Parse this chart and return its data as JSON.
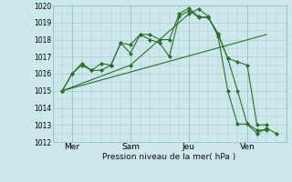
{
  "background_color": "#cce8ea",
  "grid_color": "#aacccc",
  "line_color": "#2d6e2d",
  "xlabel": "Pression niveau de la mer( hPa )",
  "ylim": [
    1012,
    1020
  ],
  "yticks": [
    1012,
    1013,
    1014,
    1015,
    1016,
    1017,
    1018,
    1019,
    1020
  ],
  "xlim": [
    0,
    12
  ],
  "xtick_positions": [
    1,
    4,
    7,
    10
  ],
  "xtick_labels": [
    "Mer",
    "Sam",
    "Jeu",
    "Ven"
  ],
  "vline_positions": [
    1,
    4,
    7,
    10
  ],
  "series": [
    {
      "x": [
        0.5,
        1.0,
        1.5,
        2.0,
        2.5,
        3.0,
        3.5,
        4.0,
        4.5,
        5.0,
        5.5,
        6.0,
        6.5,
        7.0,
        7.5,
        8.0,
        8.5,
        9.0,
        9.5,
        10.0,
        10.5,
        11.0
      ],
      "y": [
        1015.0,
        1016.0,
        1016.6,
        1016.2,
        1016.6,
        1016.5,
        1017.8,
        1017.7,
        1018.3,
        1018.3,
        1018.0,
        1018.0,
        1019.5,
        1019.85,
        1019.35,
        1019.3,
        1018.35,
        1016.9,
        1016.7,
        1016.5,
        1013.0,
        1013.0
      ],
      "marker": true
    },
    {
      "x": [
        0.5,
        11.0
      ],
      "y": [
        1015.0,
        1018.3
      ],
      "marker": false
    },
    {
      "x": [
        0.5,
        4.0,
        7.0,
        7.5,
        8.0,
        8.5,
        9.0,
        9.5,
        10.0,
        10.5,
        11.0,
        11.5
      ],
      "y": [
        1015.0,
        1016.5,
        1019.5,
        1019.8,
        1019.35,
        1018.2,
        1015.0,
        1013.05,
        1013.05,
        1012.5,
        1012.8,
        1012.5
      ],
      "marker": true
    },
    {
      "x": [
        0.5,
        1.0,
        1.5,
        2.0,
        2.5,
        3.0,
        3.5,
        4.0,
        4.5,
        5.0,
        5.5,
        6.0,
        6.5,
        7.0,
        7.5,
        8.0,
        8.5,
        9.0,
        9.5,
        10.0,
        10.5,
        11.0
      ],
      "y": [
        1015.0,
        1016.0,
        1016.5,
        1016.2,
        1016.2,
        1016.5,
        1017.8,
        1017.2,
        1018.3,
        1018.0,
        1017.8,
        1017.0,
        1019.35,
        1019.7,
        1019.3,
        1019.3,
        1018.3,
        1016.9,
        1015.0,
        1013.05,
        1012.7,
        1012.7
      ],
      "marker": true
    }
  ]
}
